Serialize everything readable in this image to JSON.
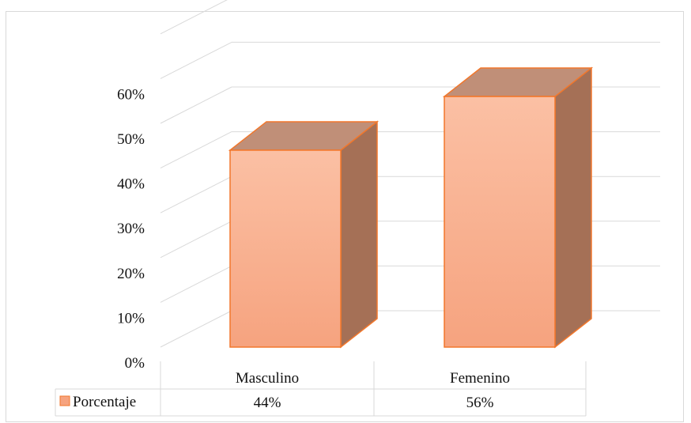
{
  "chart_data": {
    "type": "bar",
    "categories": [
      "Masculino",
      "Femenino"
    ],
    "series": [
      {
        "name": "Porcentaje",
        "values": [
          44,
          56
        ],
        "labels": [
          "44%",
          "56%"
        ]
      }
    ],
    "yticks": [
      "0%",
      "10%",
      "20%",
      "30%",
      "40%",
      "50%",
      "60%"
    ],
    "ylim": [
      0,
      70
    ],
    "style": "3d-column",
    "grid": true,
    "data_table": true,
    "colors": {
      "bar_front_top": "#FBC0A4",
      "bar_front_bottom": "#F6A37F",
      "bar_side": "#A57056",
      "bar_top": "#C08F78",
      "bar_outline": "#F2772B",
      "grid": "#D9D9D9",
      "table_border": "#D9D9D9",
      "legend_key": "#F6A37F"
    }
  }
}
